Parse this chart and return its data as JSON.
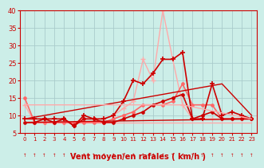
{
  "bg_color": "#cceee8",
  "grid_color": "#aacccc",
  "xlabel": "Vent moyen/en rafales ( km/h )",
  "xlim": [
    -0.5,
    23.5
  ],
  "ylim": [
    5,
    40
  ],
  "yticks": [
    5,
    10,
    15,
    20,
    25,
    30,
    35,
    40
  ],
  "xticks": [
    0,
    1,
    2,
    3,
    4,
    5,
    6,
    7,
    8,
    9,
    10,
    11,
    12,
    13,
    14,
    15,
    16,
    17,
    18,
    19,
    20,
    21,
    22,
    23
  ],
  "series": [
    {
      "name": "light_rafales",
      "color": "#ffaaaa",
      "linewidth": 1.0,
      "marker": "+",
      "markersize": 4,
      "markeredgewidth": 1.0,
      "linestyle": "-",
      "x": [
        0,
        1,
        2,
        3,
        4,
        5,
        6,
        7,
        8,
        9,
        10,
        11,
        12,
        13,
        14,
        15,
        16,
        17,
        18,
        19,
        20,
        21,
        22,
        23
      ],
      "y": [
        13,
        8,
        8,
        8,
        8,
        8,
        9,
        9,
        9,
        10,
        12,
        14,
        26,
        20,
        40,
        26,
        13,
        9,
        9,
        9,
        9,
        9,
        9,
        9
      ]
    },
    {
      "name": "light_moyen",
      "color": "#ffaaaa",
      "linewidth": 1.0,
      "marker": "None",
      "markersize": 0,
      "markeredgewidth": 0.8,
      "linestyle": "-",
      "x": [
        0,
        1,
        2,
        3,
        4,
        5,
        6,
        7,
        8,
        9,
        10,
        11,
        12,
        13,
        14,
        15,
        16,
        17,
        18,
        19,
        20,
        21,
        22,
        23
      ],
      "y": [
        8,
        8,
        8,
        8,
        8,
        8,
        8,
        8,
        8,
        8,
        8,
        8,
        8,
        8,
        8,
        8,
        8,
        8,
        8,
        8,
        8,
        8,
        8,
        8
      ]
    },
    {
      "name": "pink_rafales",
      "color": "#ff6666",
      "linewidth": 1.2,
      "marker": "o",
      "markersize": 2.5,
      "markeredgewidth": 0.8,
      "linestyle": "-",
      "x": [
        0,
        1,
        2,
        3,
        4,
        5,
        6,
        7,
        8,
        9,
        10,
        11,
        12,
        13,
        14,
        15,
        16,
        17,
        18,
        19,
        20,
        21,
        22,
        23
      ],
      "y": [
        15,
        8,
        8,
        8,
        8,
        8,
        8,
        8,
        8,
        9,
        10,
        11,
        13,
        13,
        13,
        14,
        19,
        13,
        13,
        13,
        9,
        9,
        9,
        9
      ]
    },
    {
      "name": "dark_rafales",
      "color": "#cc0000",
      "linewidth": 1.2,
      "marker": "+",
      "markersize": 5,
      "markeredgewidth": 1.2,
      "linestyle": "-",
      "x": [
        0,
        1,
        2,
        3,
        4,
        5,
        6,
        7,
        8,
        9,
        10,
        11,
        12,
        13,
        14,
        15,
        16,
        17,
        18,
        19,
        20,
        21,
        22,
        23
      ],
      "y": [
        9,
        9,
        9,
        9,
        9,
        7,
        10,
        9,
        9,
        10,
        14,
        20,
        19,
        22,
        26,
        26,
        28,
        9,
        9,
        19,
        10,
        11,
        10,
        9
      ]
    },
    {
      "name": "dark_moyen",
      "color": "#cc0000",
      "linewidth": 1.2,
      "marker": "o",
      "markersize": 2.5,
      "markeredgewidth": 0.8,
      "linestyle": "-",
      "x": [
        0,
        1,
        2,
        3,
        4,
        5,
        6,
        7,
        8,
        9,
        10,
        11,
        12,
        13,
        14,
        15,
        16,
        17,
        18,
        19,
        20,
        21,
        22,
        23
      ],
      "y": [
        8,
        8,
        9,
        8,
        9,
        7,
        9,
        9,
        8,
        8,
        9,
        10,
        11,
        13,
        14,
        15,
        16,
        9,
        10,
        11,
        9,
        9,
        9,
        9
      ]
    },
    {
      "name": "trend_rafales",
      "color": "#cc0000",
      "linewidth": 1.0,
      "marker": "None",
      "markersize": 0,
      "markeredgewidth": 0.8,
      "linestyle": "-",
      "x": [
        0,
        20,
        23
      ],
      "y": [
        9,
        19,
        10
      ]
    },
    {
      "name": "trend_moyen",
      "color": "#cc0000",
      "linewidth": 1.0,
      "marker": "None",
      "markersize": 0,
      "markeredgewidth": 0.8,
      "linestyle": "-",
      "x": [
        0,
        23
      ],
      "y": [
        8,
        9
      ]
    },
    {
      "name": "light_trend",
      "color": "#ffaaaa",
      "linewidth": 1.0,
      "marker": "None",
      "markersize": 0,
      "markeredgewidth": 0.8,
      "linestyle": "-",
      "x": [
        0,
        16,
        23
      ],
      "y": [
        13,
        13,
        9
      ]
    }
  ],
  "arrow_color": "#cc0000",
  "axis_color": "#cc0000",
  "tick_color": "#cc0000",
  "xlabel_color": "#cc0000",
  "xlabel_fontsize": 7,
  "tick_fontsize_x": 5,
  "tick_fontsize_y": 6
}
